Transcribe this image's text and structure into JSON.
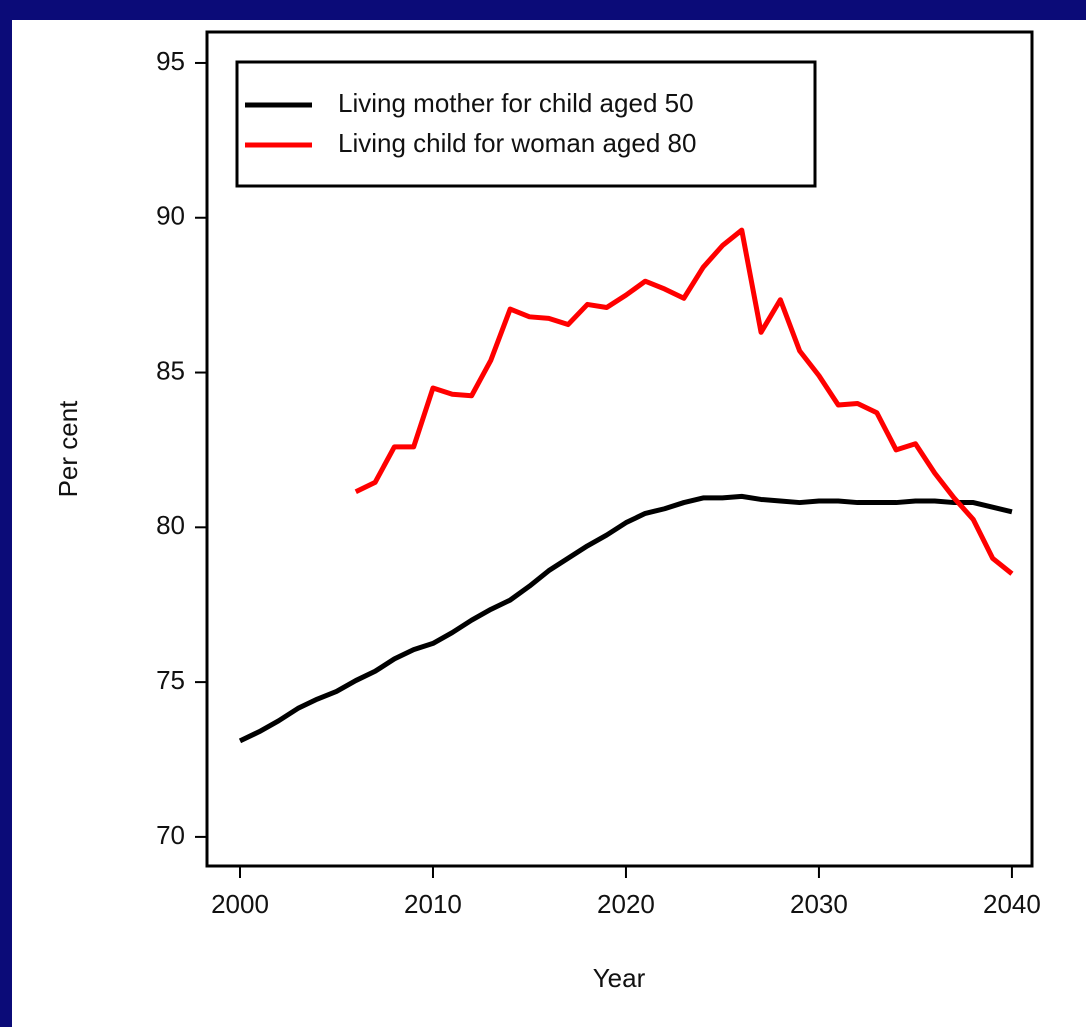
{
  "chart_data": {
    "type": "line",
    "x_label": "Year",
    "y_label": "Per cent",
    "x": [
      2000,
      2001,
      2002,
      2003,
      2004,
      2005,
      2006,
      2007,
      2008,
      2009,
      2010,
      2011,
      2012,
      2013,
      2014,
      2015,
      2016,
      2017,
      2018,
      2019,
      2020,
      2021,
      2022,
      2023,
      2024,
      2025,
      2026,
      2027,
      2028,
      2029,
      2030,
      2031,
      2032,
      2033,
      2034,
      2035,
      2036,
      2037,
      2038,
      2039,
      2040
    ],
    "series": [
      {
        "name": "Living mother for child aged 50",
        "color": "#000000",
        "values": [
          73.1,
          73.4,
          73.75,
          74.15,
          74.45,
          74.7,
          75.05,
          75.35,
          75.75,
          76.05,
          76.25,
          76.6,
          77.0,
          77.35,
          77.65,
          78.1,
          78.6,
          79.0,
          79.4,
          79.75,
          80.15,
          80.45,
          80.6,
          80.8,
          80.95,
          80.95,
          81.0,
          80.9,
          80.85,
          80.8,
          80.85,
          80.85,
          80.8,
          80.8,
          80.8,
          80.85,
          80.85,
          80.8,
          80.8,
          80.65,
          80.5
        ]
      },
      {
        "name": "Living child for woman aged 80",
        "color": "#ff0000",
        "values": [
          null,
          null,
          null,
          null,
          null,
          null,
          81.15,
          81.45,
          82.6,
          82.6,
          84.5,
          84.3,
          84.25,
          85.4,
          87.05,
          86.8,
          86.75,
          86.55,
          87.2,
          87.1,
          87.5,
          87.95,
          87.7,
          87.4,
          88.4,
          89.1,
          89.6,
          86.3,
          87.35,
          85.7,
          84.9,
          83.95,
          84.0,
          83.7,
          82.5,
          82.7,
          81.75,
          80.95,
          80.25,
          79.0,
          78.5
        ]
      }
    ],
    "xlim": [
      1998.29,
      2041.04
    ],
    "xticks": [
      2000,
      2010,
      2020,
      2030,
      2040
    ],
    "ylim": [
      69.06,
      96.0
    ],
    "yticks": [
      70,
      75,
      80,
      85,
      90,
      95
    ],
    "legend": "top-left"
  }
}
